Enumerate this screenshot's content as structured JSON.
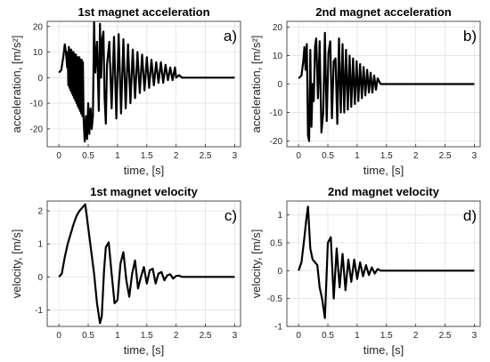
{
  "chart_data": [
    {
      "type": "line",
      "title": "1st magnet acceleration",
      "panel_label": "a)",
      "xlabel": "time, [s]",
      "ylabel": "acceleration, [m/s²]",
      "xlim": [
        -0.2,
        3.1
      ],
      "ylim": [
        -27,
        22
      ],
      "xticks": [
        0,
        0.5,
        1,
        1.5,
        2,
        2.5,
        3
      ],
      "yticks": [
        -20,
        -10,
        0,
        10,
        20
      ],
      "grid": true,
      "series": [
        {
          "x": [
            0,
            0.04,
            0.08,
            0.1,
            0.12,
            0.14,
            0.15,
            0.16,
            0.17,
            0.18,
            0.19,
            0.2,
            0.21,
            0.22,
            0.23,
            0.24,
            0.25,
            0.26,
            0.27,
            0.28,
            0.29,
            0.3,
            0.31,
            0.32,
            0.33,
            0.34,
            0.35,
            0.36,
            0.37,
            0.38,
            0.39,
            0.4,
            0.41,
            0.42,
            0.43,
            0.44,
            0.46,
            0.48,
            0.5,
            0.52,
            0.54,
            0.56,
            0.58,
            0.6,
            0.62,
            0.65,
            0.68,
            0.7,
            0.72,
            0.74,
            0.76,
            0.78,
            0.8,
            0.82,
            0.86,
            0.9,
            0.94,
            0.98,
            1.02,
            1.06,
            1.1,
            1.14,
            1.18,
            1.22,
            1.26,
            1.3,
            1.34,
            1.38,
            1.42,
            1.46,
            1.5,
            1.54,
            1.58,
            1.62,
            1.66,
            1.7,
            1.74,
            1.78,
            1.82,
            1.86,
            1.9,
            1.94,
            1.98,
            2.0,
            2.05,
            2.1,
            2.2,
            3.0
          ],
          "y": [
            2,
            3,
            9,
            13,
            10,
            4,
            10,
            -3,
            12,
            -4,
            11,
            -5,
            11,
            -6,
            10,
            -7,
            10,
            -8,
            9,
            -9,
            9,
            -10,
            8,
            -11,
            8,
            -12,
            8,
            -13,
            7,
            -14,
            7,
            -15,
            6,
            -16,
            -20,
            -25,
            -15,
            -24,
            -10,
            -22,
            -12,
            -20,
            -15,
            22,
            2,
            14,
            -13,
            21,
            0,
            15,
            18,
            -8,
            -18,
            5,
            14,
            -12,
            16,
            -16,
            17,
            -14,
            15,
            -12,
            13,
            -10,
            11,
            -8,
            10,
            -6,
            9,
            -5,
            8,
            -4,
            7,
            -3,
            6,
            -2,
            6,
            -2,
            5,
            -1,
            4,
            -1,
            4,
            0,
            1,
            0,
            0,
            0
          ]
        }
      ]
    },
    {
      "type": "line",
      "title": "2nd magnet acceleration",
      "panel_label": "b)",
      "xlabel": "time, [s]",
      "ylabel": "acceleration, [m/s²]",
      "xlim": [
        -0.2,
        3.1
      ],
      "ylim": [
        -22,
        22
      ],
      "xticks": [
        0,
        0.5,
        1,
        1.5,
        2,
        2.5,
        3
      ],
      "yticks": [
        -20,
        -10,
        0,
        10,
        20
      ],
      "grid": true,
      "series": [
        {
          "x": [
            0,
            0.05,
            0.08,
            0.1,
            0.12,
            0.14,
            0.16,
            0.18,
            0.2,
            0.22,
            0.24,
            0.26,
            0.28,
            0.3,
            0.33,
            0.36,
            0.39,
            0.42,
            0.45,
            0.48,
            0.51,
            0.54,
            0.57,
            0.6,
            0.63,
            0.66,
            0.69,
            0.72,
            0.75,
            0.78,
            0.81,
            0.84,
            0.87,
            0.9,
            0.93,
            0.96,
            0.99,
            1.02,
            1.05,
            1.08,
            1.11,
            1.14,
            1.17,
            1.2,
            1.23,
            1.26,
            1.29,
            1.32,
            1.35,
            1.4,
            1.5,
            3.0
          ],
          "y": [
            2,
            3,
            8,
            13,
            5,
            14,
            -18,
            -20,
            12,
            -15,
            0,
            -6,
            13,
            16,
            -5,
            15,
            -17,
            -10,
            18,
            -13,
            11,
            15,
            -12,
            8,
            9,
            -14,
            16,
            -10,
            14,
            -10,
            12,
            -9,
            10,
            -8,
            9,
            -7,
            8,
            -6,
            7,
            -5,
            6,
            -4,
            5,
            -3,
            4,
            -3,
            3,
            -2,
            2,
            0,
            0,
            0
          ]
        }
      ]
    },
    {
      "type": "line",
      "title": "1st magnet velocity",
      "panel_label": "c)",
      "xlabel": "time, [s]",
      "ylabel": "velocity, [m/s]",
      "xlim": [
        -0.2,
        3.1
      ],
      "ylim": [
        -1.5,
        2.3
      ],
      "xticks": [
        0,
        0.5,
        1,
        1.5,
        2,
        2.5,
        3
      ],
      "yticks": [
        -1,
        0,
        1,
        2
      ],
      "grid": true,
      "series": [
        {
          "x": [
            0,
            0.05,
            0.1,
            0.15,
            0.2,
            0.25,
            0.3,
            0.35,
            0.4,
            0.45,
            0.5,
            0.55,
            0.6,
            0.65,
            0.7,
            0.73,
            0.77,
            0.8,
            0.85,
            0.9,
            0.95,
            1.0,
            1.05,
            1.1,
            1.15,
            1.2,
            1.25,
            1.3,
            1.35,
            1.4,
            1.45,
            1.5,
            1.55,
            1.6,
            1.65,
            1.7,
            1.75,
            1.8,
            1.85,
            1.9,
            1.95,
            2.0,
            2.05,
            2.1,
            2.2,
            3.0
          ],
          "y": [
            0,
            0.1,
            0.6,
            1.0,
            1.3,
            1.6,
            1.85,
            2.0,
            2.1,
            2.2,
            1.5,
            0.8,
            0.1,
            -0.8,
            -1.4,
            -1.2,
            0.2,
            0.9,
            1.05,
            0.1,
            -0.8,
            -0.7,
            0.4,
            0.75,
            -0.1,
            -0.6,
            0.1,
            0.5,
            -0.35,
            0.0,
            0.3,
            -0.2,
            0.2,
            0.25,
            -0.2,
            0.1,
            0.15,
            -0.1,
            0.05,
            0.08,
            -0.05,
            0.03,
            0.04,
            0.0,
            0.0,
            0.0
          ]
        }
      ]
    },
    {
      "type": "line",
      "title": "2nd magnet velocity",
      "panel_label": "d)",
      "xlabel": "time, [s]",
      "ylabel": "velocity, [m/s]",
      "xlim": [
        -0.2,
        3.1
      ],
      "ylim": [
        -1.0,
        1.25
      ],
      "xticks": [
        0,
        0.5,
        1,
        1.5,
        2,
        2.5,
        3
      ],
      "yticks": [
        -1,
        -0.5,
        0,
        0.5,
        1
      ],
      "grid": true,
      "series": [
        {
          "x": [
            0,
            0.05,
            0.1,
            0.13,
            0.16,
            0.2,
            0.24,
            0.28,
            0.32,
            0.36,
            0.4,
            0.45,
            0.5,
            0.55,
            0.6,
            0.65,
            0.7,
            0.75,
            0.8,
            0.85,
            0.9,
            0.95,
            1.0,
            1.05,
            1.1,
            1.15,
            1.2,
            1.25,
            1.3,
            1.35,
            1.4,
            1.5,
            3.0
          ],
          "y": [
            0,
            0.15,
            0.6,
            0.9,
            1.15,
            0.4,
            0.2,
            0.15,
            0.1,
            -0.3,
            -0.5,
            -0.85,
            0.5,
            0.6,
            -0.5,
            0.4,
            -0.3,
            0.3,
            -0.35,
            0.2,
            -0.2,
            0.2,
            -0.15,
            0.15,
            -0.1,
            0.1,
            -0.08,
            0.06,
            -0.05,
            0.03,
            0.0,
            0.0,
            0.0
          ]
        }
      ]
    }
  ]
}
